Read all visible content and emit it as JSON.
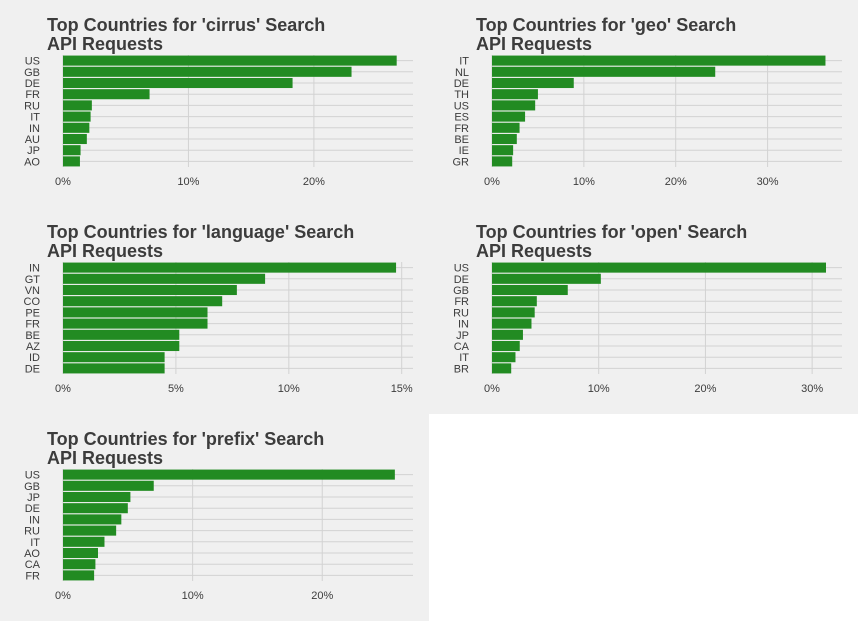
{
  "colors": {
    "bar": "#228b22",
    "panel_bg": "#f0f0f0",
    "grid": "#d2d2d2",
    "text": "#3c3c3c"
  },
  "chart_data": [
    {
      "type": "bar",
      "orientation": "horizontal",
      "title": [
        "Top Countries for 'cirrus' Search",
        "API Requests"
      ],
      "categories": [
        "US",
        "GB",
        "DE",
        "FR",
        "RU",
        "IT",
        "IN",
        "AU",
        "JP",
        "AO"
      ],
      "values": [
        26.6,
        23.0,
        18.3,
        6.9,
        2.3,
        2.2,
        2.1,
        1.9,
        1.4,
        1.35
      ],
      "xlim": [
        0,
        27.9
      ],
      "xticks": [
        0,
        10,
        20
      ],
      "tick_labels": [
        "0%",
        "10%",
        "20%"
      ],
      "grid": true
    },
    {
      "type": "bar",
      "orientation": "horizontal",
      "title": [
        "Top Countries for 'geo' Search",
        "API Requests"
      ],
      "categories": [
        "IT",
        "NL",
        "DE",
        "TH",
        "US",
        "ES",
        "FR",
        "BE",
        "IE",
        "GR"
      ],
      "values": [
        36.3,
        24.3,
        8.9,
        5.0,
        4.7,
        3.6,
        3.0,
        2.7,
        2.3,
        2.2
      ],
      "xlim": [
        0,
        38.1
      ],
      "xticks": [
        0,
        10,
        20,
        30
      ],
      "tick_labels": [
        "0%",
        "10%",
        "20%",
        "30%"
      ],
      "grid": true
    },
    {
      "type": "bar",
      "orientation": "horizontal",
      "title": [
        "Top Countries for 'language' Search",
        "API Requests"
      ],
      "categories": [
        "IN",
        "GT",
        "VN",
        "CO",
        "PE",
        "FR",
        "BE",
        "AZ",
        "ID",
        "DE"
      ],
      "values": [
        14.75,
        8.95,
        7.7,
        7.05,
        6.4,
        6.4,
        5.15,
        5.15,
        4.5,
        4.5
      ],
      "xlim": [
        0,
        15.5
      ],
      "xticks": [
        0,
        5,
        10,
        15
      ],
      "tick_labels": [
        "0%",
        "5%",
        "10%",
        "15%"
      ],
      "grid": true
    },
    {
      "type": "bar",
      "orientation": "horizontal",
      "title": [
        "Top Countries for 'open' Search",
        "API Requests"
      ],
      "categories": [
        "US",
        "DE",
        "GB",
        "FR",
        "RU",
        "IN",
        "JP",
        "CA",
        "IT",
        "BR"
      ],
      "values": [
        31.3,
        10.2,
        7.1,
        4.2,
        4.0,
        3.7,
        2.9,
        2.6,
        2.2,
        1.8
      ],
      "xlim": [
        0,
        32.8
      ],
      "xticks": [
        0,
        10,
        20,
        30
      ],
      "tick_labels": [
        "0%",
        "10%",
        "20%",
        "30%"
      ],
      "grid": true
    },
    {
      "type": "bar",
      "orientation": "horizontal",
      "title": [
        "Top Countries for 'prefix' Search",
        "API Requests"
      ],
      "categories": [
        "US",
        "GB",
        "JP",
        "DE",
        "IN",
        "RU",
        "IT",
        "AO",
        "CA",
        "FR"
      ],
      "values": [
        25.6,
        7.0,
        5.2,
        5.0,
        4.5,
        4.1,
        3.2,
        2.7,
        2.5,
        2.4
      ],
      "xlim": [
        0,
        27.0
      ],
      "xticks": [
        0,
        10,
        20
      ],
      "tick_labels": [
        "0%",
        "10%",
        "20%"
      ],
      "grid": true
    }
  ]
}
